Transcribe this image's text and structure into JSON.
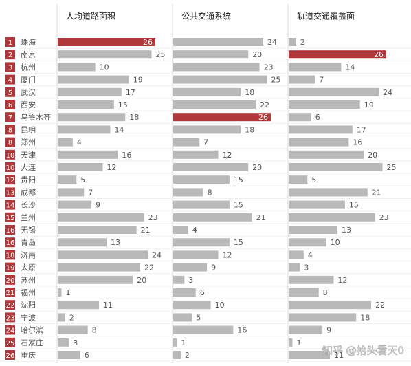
{
  "chart_data": {
    "type": "bar",
    "ranks": [
      1,
      2,
      3,
      4,
      5,
      6,
      7,
      8,
      8,
      10,
      10,
      12,
      13,
      14,
      15,
      16,
      16,
      18,
      19,
      20,
      21,
      22,
      23,
      24,
      25,
      26
    ],
    "categories": [
      "珠海",
      "南京",
      "杭州",
      "厦门",
      "武汉",
      "西安",
      "乌鲁木齐",
      "昆明",
      "郑州",
      "天津",
      "大连",
      "贵阳",
      "成都",
      "长沙",
      "兰州",
      "无锡",
      "青岛",
      "济南",
      "太原",
      "苏州",
      "福州",
      "沈阳",
      "宁波",
      "哈尔滨",
      "石家庄",
      "重庆"
    ],
    "color": "#b9b9b9",
    "highlight_color": "#b0373a",
    "series": [
      {
        "name": "人均道路面积",
        "values": [
          26,
          25,
          10,
          19,
          17,
          15,
          18,
          14,
          4,
          16,
          12,
          5,
          7,
          9,
          23,
          21,
          13,
          24,
          22,
          20,
          1,
          11,
          2,
          8,
          3,
          6
        ]
      },
      {
        "name": "公共交通系统",
        "values": [
          24,
          20,
          23,
          25,
          18,
          22,
          26,
          18,
          7,
          12,
          20,
          15,
          8,
          15,
          21,
          4,
          15,
          12,
          9,
          3,
          6,
          10,
          5,
          16,
          1,
          2
        ]
      },
      {
        "name": "轨道交通覆盖面",
        "values": [
          2,
          26,
          14,
          7,
          24,
          19,
          6,
          17,
          16,
          20,
          25,
          5,
          21,
          15,
          23,
          13,
          10,
          4,
          3,
          12,
          8,
          22,
          18,
          9,
          1,
          11
        ]
      }
    ],
    "watermark": "知乎 @拾头看天0"
  }
}
